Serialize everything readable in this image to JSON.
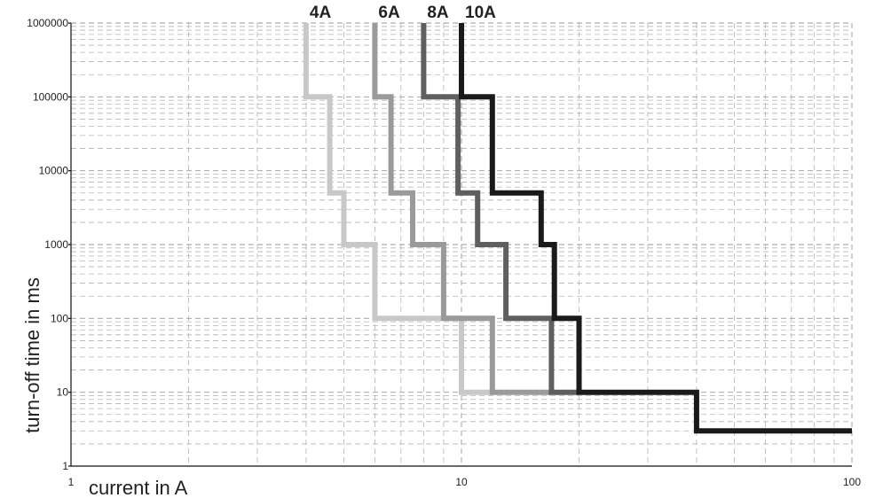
{
  "chart_data": {
    "type": "line",
    "title": "",
    "xlabel": "current in A",
    "ylabel": "turn-off time in ms",
    "xscale": "log",
    "yscale": "log",
    "xlim": [
      1,
      100
    ],
    "ylim": [
      1,
      1000000
    ],
    "grid": true,
    "x_ticks": [
      1,
      10,
      100
    ],
    "y_ticks": [
      1,
      10,
      100,
      1000,
      10000,
      100000,
      1000000
    ],
    "x_tick_labels": [
      "1",
      "10",
      "100"
    ],
    "y_tick_labels": [
      "1",
      "10",
      "100",
      "1000",
      "10000",
      "100000",
      "1000000"
    ],
    "series": [
      {
        "name": "4A",
        "color": "#c8c8c8",
        "points": [
          [
            4,
            1000000
          ],
          [
            4,
            100000
          ],
          [
            4.6,
            100000
          ],
          [
            4.6,
            5000
          ],
          [
            5,
            5000
          ],
          [
            5,
            1000
          ],
          [
            6,
            1000
          ],
          [
            6,
            100
          ],
          [
            10,
            100
          ],
          [
            10,
            10
          ],
          [
            12,
            10
          ]
        ]
      },
      {
        "name": "6A",
        "color": "#9a9a9a",
        "points": [
          [
            6,
            1000000
          ],
          [
            6,
            100000
          ],
          [
            6.6,
            100000
          ],
          [
            6.6,
            5000
          ],
          [
            7.5,
            5000
          ],
          [
            7.5,
            1000
          ],
          [
            9,
            1000
          ],
          [
            9,
            100
          ],
          [
            12,
            100
          ],
          [
            12,
            10
          ],
          [
            17,
            10
          ]
        ]
      },
      {
        "name": "8A",
        "color": "#5f5f5f",
        "points": [
          [
            8,
            1000000
          ],
          [
            8,
            100000
          ],
          [
            9.8,
            100000
          ],
          [
            9.8,
            5000
          ],
          [
            11,
            5000
          ],
          [
            11,
            1000
          ],
          [
            13,
            1000
          ],
          [
            13,
            100
          ],
          [
            17,
            100
          ],
          [
            17,
            10
          ],
          [
            20,
            10
          ]
        ]
      },
      {
        "name": "10A",
        "color": "#1a1a1a",
        "points": [
          [
            10,
            1000000
          ],
          [
            10,
            100000
          ],
          [
            12,
            100000
          ],
          [
            12,
            5000
          ],
          [
            16,
            5000
          ],
          [
            16,
            1000
          ],
          [
            17.3,
            1000
          ],
          [
            17.3,
            100
          ],
          [
            20,
            100
          ],
          [
            20,
            10
          ],
          [
            40,
            10
          ],
          [
            40,
            3
          ],
          [
            100,
            3
          ]
        ]
      }
    ]
  }
}
